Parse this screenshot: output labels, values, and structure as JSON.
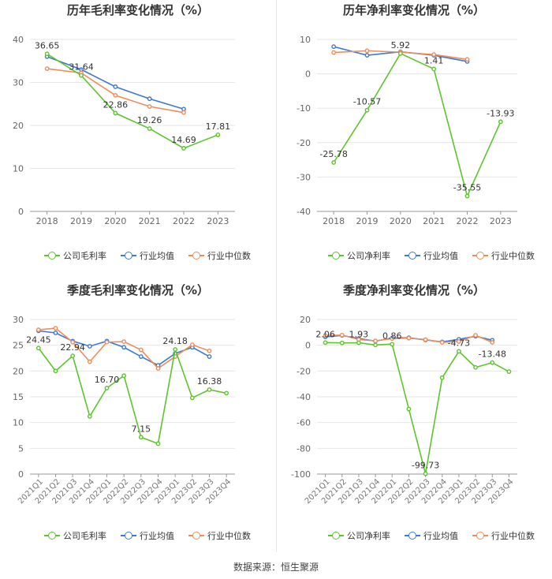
{
  "colors": {
    "company": "#5cc52c",
    "industry_avg": "#3c78d8",
    "industry_median": "#f08c5a"
  },
  "source": "数据来源：恒生聚源",
  "chart_data": [
    {
      "type": "line",
      "title": "历年毛利率变化情况（%）",
      "categories": [
        "2018",
        "2019",
        "2020",
        "2021",
        "2022",
        "2023"
      ],
      "ylim": [
        0,
        40
      ],
      "yticks": [
        0,
        10,
        20,
        30,
        40
      ],
      "rotate_x": false,
      "series": [
        {
          "name": "公司毛利率",
          "key": "company",
          "values": [
            36.65,
            31.64,
            22.86,
            19.26,
            14.69,
            17.81
          ],
          "labels": [
            "36.65",
            "31.64",
            "22.86",
            "19.26",
            "14.69",
            "17.81"
          ]
        },
        {
          "name": "行业均值",
          "key": "industry_avg",
          "values": [
            36.0,
            33.0,
            29.0,
            26.2,
            23.8,
            null
          ]
        },
        {
          "name": "行业中位数",
          "key": "industry_median",
          "values": [
            33.2,
            32.2,
            27.0,
            24.4,
            23.0,
            null
          ]
        }
      ]
    },
    {
      "type": "line",
      "title": "历年净利率变化情况（%）",
      "categories": [
        "2018",
        "2019",
        "2020",
        "2021",
        "2022",
        "2023"
      ],
      "ylim": [
        -40,
        10
      ],
      "yticks": [
        -40,
        -30,
        -20,
        -10,
        0,
        10
      ],
      "rotate_x": false,
      "series": [
        {
          "name": "公司净利率",
          "key": "company",
          "values": [
            -25.78,
            -10.57,
            5.92,
            1.41,
            -35.55,
            -13.93
          ],
          "labels": [
            "-25.78",
            "-10.57",
            "5.92",
            "1.41",
            "-35.55",
            "-13.93"
          ]
        },
        {
          "name": "行业均值",
          "key": "industry_avg",
          "values": [
            7.9,
            5.4,
            6.4,
            5.4,
            3.6,
            null
          ]
        },
        {
          "name": "行业中位数",
          "key": "industry_median",
          "values": [
            6.2,
            6.7,
            6.3,
            5.6,
            4.2,
            null
          ]
        }
      ]
    },
    {
      "type": "line",
      "title": "季度毛利率变化情况（%）",
      "categories": [
        "2021Q1",
        "2021Q2",
        "2021Q3",
        "2021Q4",
        "2022Q1",
        "2022Q2",
        "2022Q3",
        "2022Q4",
        "2023Q1",
        "2023Q2",
        "2023Q3",
        "2023Q4"
      ],
      "ylim": [
        0,
        30
      ],
      "yticks": [
        0,
        5,
        10,
        15,
        20,
        25,
        30
      ],
      "rotate_x": true,
      "series": [
        {
          "name": "公司毛利率",
          "key": "company",
          "values": [
            24.45,
            20.0,
            22.94,
            11.2,
            16.7,
            19.1,
            7.15,
            5.9,
            24.18,
            14.8,
            16.38,
            15.7
          ],
          "labels": [
            "24.45",
            null,
            "22.94",
            null,
            "16.70",
            null,
            "7.15",
            null,
            "24.18",
            null,
            "16.38",
            null
          ]
        },
        {
          "name": "行业均值",
          "key": "industry_avg",
          "values": [
            27.8,
            27.4,
            25.8,
            24.8,
            25.8,
            24.6,
            22.8,
            21.1,
            23.4,
            24.6,
            22.8,
            null
          ]
        },
        {
          "name": "行业中位数",
          "key": "industry_median",
          "values": [
            28.0,
            28.3,
            25.6,
            21.8,
            25.6,
            25.7,
            24.1,
            20.5,
            22.8,
            25.1,
            23.9,
            null
          ]
        }
      ]
    },
    {
      "type": "line",
      "title": "季度净利率变化情况（%）",
      "categories": [
        "2021Q1",
        "2021Q2",
        "2021Q3",
        "2021Q4",
        "2022Q1",
        "2022Q2",
        "2022Q3",
        "2022Q4",
        "2023Q1",
        "2023Q2",
        "2023Q3",
        "2023Q4"
      ],
      "ylim": [
        -100,
        20
      ],
      "yticks": [
        -100,
        -80,
        -60,
        -40,
        -20,
        0,
        20
      ],
      "rotate_x": true,
      "series": [
        {
          "name": "公司净利率",
          "key": "company",
          "values": [
            2.06,
            1.8,
            1.93,
            0.2,
            0.86,
            -49.5,
            -99.73,
            -25.2,
            -4.73,
            -17.2,
            -13.48,
            -20.5
          ],
          "labels": [
            "2.06",
            null,
            "1.93",
            null,
            "0.86",
            null,
            "-99.73",
            null,
            "-4.73",
            null,
            "-13.48",
            null
          ]
        },
        {
          "name": "行业均值",
          "key": "industry_avg",
          "values": [
            6.5,
            7.6,
            5.2,
            3.2,
            5.6,
            5.8,
            4.1,
            2.6,
            4.6,
            7.0,
            3.9,
            null
          ]
        },
        {
          "name": "行业中位数",
          "key": "industry_median",
          "values": [
            7.6,
            7.9,
            4.4,
            3.4,
            5.2,
            5.5,
            4.4,
            2.2,
            2.9,
            7.7,
            2.2,
            null
          ]
        }
      ]
    }
  ]
}
